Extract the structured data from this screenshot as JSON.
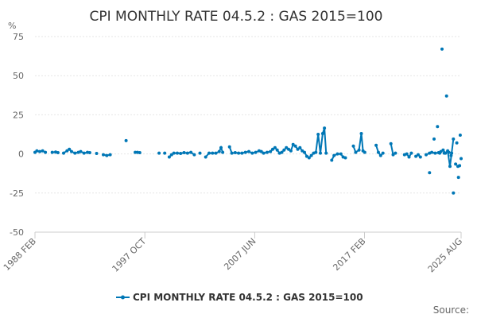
{
  "chart_data": {
    "type": "line",
    "title": "CPI MONTHLY RATE 04.5.2 : GAS 2015=100",
    "ylabel": "%",
    "xlabel": "",
    "ylim": [
      -50,
      75
    ],
    "yticks": [
      75,
      50,
      25,
      0,
      -25,
      -50
    ],
    "xlim": [
      1988.08,
      2025.58
    ],
    "xticks": [
      {
        "label": "1988 FEB",
        "x": 1988.08
      },
      {
        "label": "1997 OCT",
        "x": 1997.75
      },
      {
        "label": "2007 JUN",
        "x": 2007.42
      },
      {
        "label": "2017 FEB",
        "x": 2017.08
      },
      {
        "label": "2025 AUG",
        "x": 2025.58
      }
    ],
    "legend": {
      "position": "bottom",
      "label": "CPI MONTHLY RATE 04.5.2 : GAS 2015=100"
    },
    "source_label": "Source:",
    "series_color": "#0077b6",
    "series": [
      {
        "name": "CPI MONTHLY RATE 04.5.2 : GAS 2015=100",
        "segments": [
          [
            [
              1988.08,
              1.0
            ],
            [
              1988.25,
              2.0
            ],
            [
              1988.5,
              1.5
            ],
            [
              1988.75,
              2.0
            ],
            [
              1989.0,
              1.0
            ]
          ],
          [
            [
              1989.6,
              1.0
            ],
            [
              1989.9,
              1.2
            ],
            [
              1990.1,
              0.8
            ]
          ],
          [
            [
              1990.6,
              0.5
            ],
            [
              1990.9,
              2.0
            ],
            [
              1991.1,
              3.0
            ],
            [
              1991.3,
              1.5
            ],
            [
              1991.6,
              0.5
            ],
            [
              1991.9,
              1.0
            ],
            [
              1992.1,
              1.5
            ],
            [
              1992.4,
              0.5
            ],
            [
              1992.7,
              1.0
            ],
            [
              1992.9,
              0.8
            ]
          ],
          [
            [
              1993.5,
              0.3
            ]
          ],
          [
            [
              1994.1,
              -0.5
            ],
            [
              1994.4,
              -1.0
            ],
            [
              1994.7,
              -0.5
            ]
          ],
          [
            [
              1996.1,
              8.5
            ]
          ],
          [
            [
              1996.9,
              1.0
            ],
            [
              1997.1,
              1.0
            ],
            [
              1997.3,
              0.8
            ]
          ],
          [
            [
              1999.0,
              0.5
            ]
          ],
          [
            [
              1999.5,
              0.5
            ]
          ],
          [
            [
              1999.9,
              -2.0
            ],
            [
              2000.1,
              -0.5
            ],
            [
              2000.3,
              0.5
            ],
            [
              2000.6,
              0.5
            ],
            [
              2000.9,
              0.3
            ],
            [
              2001.2,
              0.8
            ],
            [
              2001.5,
              0.5
            ],
            [
              2001.8,
              1.0
            ],
            [
              2002.1,
              -0.5
            ]
          ],
          [
            [
              2002.6,
              0.5
            ]
          ],
          [
            [
              2003.1,
              -2.0
            ],
            [
              2003.4,
              0.5
            ],
            [
              2003.7,
              0.5
            ],
            [
              2004.0,
              0.5
            ],
            [
              2004.3,
              1.5
            ],
            [
              2004.45,
              4.0
            ],
            [
              2004.6,
              1.0
            ]
          ],
          [
            [
              2005.2,
              4.5
            ],
            [
              2005.4,
              0.5
            ],
            [
              2005.7,
              0.8
            ],
            [
              2006.0,
              0.5
            ],
            [
              2006.3,
              0.5
            ],
            [
              2006.6,
              1.0
            ],
            [
              2006.9,
              1.5
            ],
            [
              2007.2,
              0.5
            ],
            [
              2007.5,
              1.0
            ],
            [
              2007.8,
              2.0
            ],
            [
              2008.0,
              1.5
            ],
            [
              2008.2,
              0.5
            ],
            [
              2008.5,
              1.0
            ],
            [
              2008.8,
              1.5
            ],
            [
              2009.0,
              3.0
            ],
            [
              2009.2,
              4.0
            ],
            [
              2009.4,
              2.5
            ],
            [
              2009.6,
              0.5
            ],
            [
              2009.8,
              1.0
            ],
            [
              2010.0,
              2.5
            ],
            [
              2010.2,
              4.0
            ],
            [
              2010.4,
              3.0
            ],
            [
              2010.6,
              2.0
            ],
            [
              2010.8,
              6.0
            ],
            [
              2011.0,
              5.0
            ],
            [
              2011.2,
              3.0
            ],
            [
              2011.4,
              4.0
            ],
            [
              2011.6,
              2.0
            ],
            [
              2011.8,
              1.0
            ],
            [
              2012.0,
              -1.5
            ],
            [
              2012.2,
              -2.5
            ],
            [
              2012.4,
              -1.0
            ],
            [
              2012.6,
              0.5
            ],
            [
              2012.8,
              1.0
            ],
            [
              2013.0,
              12.5
            ],
            [
              2013.2,
              0.5
            ],
            [
              2013.4,
              13.0
            ],
            [
              2013.55,
              16.5
            ],
            [
              2013.7,
              0.5
            ]
          ],
          [
            [
              2014.2,
              -4.0
            ],
            [
              2014.4,
              -1.0
            ],
            [
              2014.7,
              0.0
            ],
            [
              2015.0,
              0.0
            ],
            [
              2015.2,
              -2.0
            ],
            [
              2015.4,
              -2.5
            ]
          ],
          [
            [
              2016.1,
              5.0
            ],
            [
              2016.3,
              1.0
            ],
            [
              2016.6,
              2.5
            ],
            [
              2016.8,
              13.0
            ],
            [
              2016.95,
              2.0
            ],
            [
              2017.1,
              1.0
            ]
          ],
          [
            [
              2018.1,
              5.5
            ],
            [
              2018.3,
              1.0
            ],
            [
              2018.5,
              -1.0
            ],
            [
              2018.7,
              0.5
            ]
          ],
          [
            [
              2019.4,
              6.5
            ],
            [
              2019.6,
              -0.5
            ],
            [
              2019.8,
              0.5
            ]
          ],
          [
            [
              2020.6,
              -0.5
            ],
            [
              2020.8,
              0.0
            ],
            [
              2021.0,
              -2.0
            ],
            [
              2021.2,
              0.5
            ]
          ],
          [
            [
              2021.6,
              -1.5
            ],
            [
              2021.8,
              -0.5
            ],
            [
              2022.0,
              -2.0
            ]
          ],
          [
            [
              2022.5,
              -0.5
            ],
            [
              2022.8,
              0.5
            ],
            [
              2023.0,
              1.0
            ],
            [
              2023.3,
              0.5
            ],
            [
              2023.6,
              0.8
            ],
            [
              2023.8,
              1.5
            ],
            [
              2024.0,
              2.5
            ],
            [
              2024.2,
              0.5
            ],
            [
              2024.4,
              2.0
            ],
            [
              2024.6,
              -8.0
            ],
            [
              2024.75,
              0.5
            ],
            [
              2024.9,
              9.5
            ]
          ],
          [
            [
              2025.3,
              -8.0
            ]
          ],
          [
            [
              2025.58,
              -3.0
            ]
          ]
        ]
      }
    ],
    "outliers_beyond_range": "last segments after 2025 are shown compressed near right edge in original",
    "extra_points": [
      {
        "x": 2022.8,
        "y": -12.0
      },
      {
        "x": 2023.2,
        "y": 9.5
      },
      {
        "x": 2023.5,
        "y": 17.5
      },
      {
        "x": 2023.7,
        "y": 0.5
      },
      {
        "x": 2023.9,
        "y": 67.0
      },
      {
        "x": 2024.1,
        "y": 0.5
      },
      {
        "x": 2024.3,
        "y": 37.0
      },
      {
        "x": 2024.5,
        "y": 1.0
      },
      {
        "x": 2024.7,
        "y": -1.0
      },
      {
        "x": 2024.9,
        "y": -25.0
      },
      {
        "x": 2025.1,
        "y": -6.5
      },
      {
        "x": 2025.2,
        "y": 7.0
      },
      {
        "x": 2025.35,
        "y": -15.0
      },
      {
        "x": 2025.45,
        "y": -7.5
      },
      {
        "x": 2025.5,
        "y": 12.0
      }
    ]
  }
}
